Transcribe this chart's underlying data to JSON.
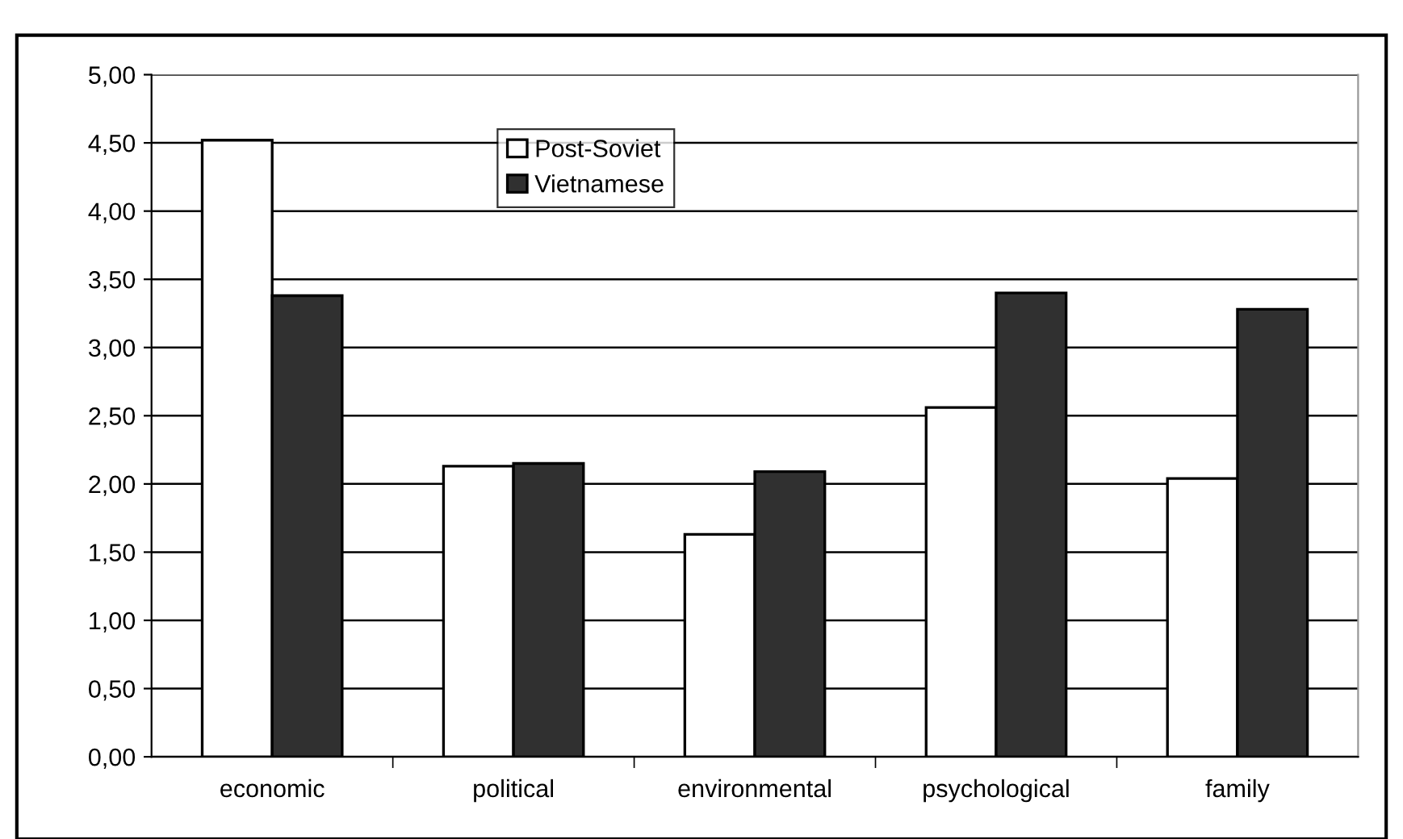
{
  "chart_data": {
    "type": "bar",
    "categories": [
      "economic",
      "political",
      "environmental",
      "psychological",
      "family"
    ],
    "series": [
      {
        "name": "Post-Soviet",
        "color": "#ffffff",
        "values": [
          4.52,
          2.13,
          1.63,
          2.56,
          2.04
        ]
      },
      {
        "name": "Vietnamese",
        "color": "#303030",
        "values": [
          3.38,
          2.15,
          2.09,
          3.4,
          3.28
        ]
      }
    ],
    "ylim": [
      0,
      5
    ],
    "yticks": [
      {
        "value": 0,
        "label": "0,00"
      },
      {
        "value": 0.5,
        "label": "0,50"
      },
      {
        "value": 1,
        "label": "1,00"
      },
      {
        "value": 1.5,
        "label": "1,50"
      },
      {
        "value": 2,
        "label": "2,00"
      },
      {
        "value": 2.5,
        "label": "2,50"
      },
      {
        "value": 3,
        "label": "3,00"
      },
      {
        "value": 3.5,
        "label": "3,50"
      },
      {
        "value": 4,
        "label": "4,00"
      },
      {
        "value": 4.5,
        "label": "4,50"
      },
      {
        "value": 5,
        "label": "5,00"
      }
    ],
    "grid": "y",
    "legend": "top"
  }
}
